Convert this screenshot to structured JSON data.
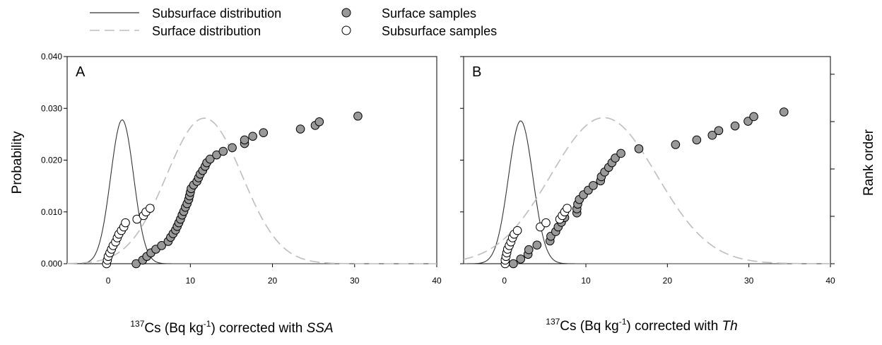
{
  "legend": {
    "subsurface_distribution": "Subsurface distribution",
    "surface_distribution": "Surface distribution",
    "surface_samples": "Surface samples",
    "subsurface_samples": "Subsurface samples"
  },
  "left_axis_title": "Probability",
  "right_axis_title": "Rank order",
  "colors": {
    "subsurface_line": "#333333",
    "surface_line": "#bdbdbd",
    "surface_marker_fill": "#999999",
    "subsurface_marker_fill": "#ffffff",
    "marker_edge": "#000000"
  },
  "chart_data": [
    {
      "type": "scatter",
      "panel_letter": "A",
      "xlabel": {
        "iso": "137",
        "a": "Cs (Bq kg",
        "exp": "-1",
        "b": ")  corrected with ",
        "method": "SSA"
      },
      "xlim": [
        -5,
        40
      ],
      "ylim": [
        0,
        0.04
      ],
      "x_ticks": [
        0,
        10,
        20,
        30,
        40
      ],
      "x_tick_labels": [
        "0",
        "10",
        "20",
        "30",
        "40"
      ],
      "y_ticks": [
        0,
        0.01,
        0.02,
        0.03,
        0.04
      ],
      "y_tick_labels": [
        "0.000",
        "0.010",
        "0.020",
        "0.030",
        "0.040"
      ],
      "series": [
        {
          "name": "Subsurface distribution",
          "kind": "normal_curve",
          "mean": 1.7,
          "sd": 1.4,
          "peak": 0.0278
        },
        {
          "name": "Surface distribution",
          "kind": "normal_curve",
          "mean": 11.7,
          "sd": 4.6,
          "peak": 0.0281
        },
        {
          "name": "Surface samples",
          "kind": "points",
          "x": [
            3.4,
            4.2,
            4.7,
            5.2,
            5.8,
            6.5,
            7.3,
            7.6,
            7.9,
            8.2,
            8.4,
            8.6,
            8.8,
            9.0,
            9.2,
            9.4,
            9.6,
            9.8,
            9.9,
            10.0,
            10.1,
            10.4,
            10.8,
            11.0,
            11.2,
            11.5,
            11.8,
            12.0,
            12.4,
            13.2,
            14.0,
            15.1,
            16.6,
            16.6,
            17.6,
            18.9,
            23.4,
            25.2,
            25.7,
            30.4
          ],
          "y": [
            0.0,
            0.0007,
            0.0014,
            0.0021,
            0.0028,
            0.0035,
            0.0043,
            0.0051,
            0.0058,
            0.0065,
            0.0072,
            0.0079,
            0.0086,
            0.0094,
            0.0101,
            0.0109,
            0.0116,
            0.0124,
            0.0131,
            0.0138,
            0.0145,
            0.0152,
            0.0159,
            0.0166,
            0.0173,
            0.018,
            0.0188,
            0.0195,
            0.0202,
            0.021,
            0.0217,
            0.0224,
            0.0232,
            0.0239,
            0.0246,
            0.0253,
            0.026,
            0.0267,
            0.0274,
            0.0285
          ]
        },
        {
          "name": "Subsurface samples",
          "kind": "points",
          "x": [
            -0.2,
            -0.1,
            0.0,
            0.2,
            0.4,
            0.6,
            0.9,
            1.1,
            1.3,
            1.6,
            1.9,
            2.1,
            3.5,
            4.3,
            4.6,
            5.1
          ],
          "y": [
            0.0,
            0.0007,
            0.0014,
            0.0021,
            0.0028,
            0.0035,
            0.0042,
            0.005,
            0.0057,
            0.0064,
            0.0071,
            0.0079,
            0.0086,
            0.0093,
            0.01,
            0.0107
          ]
        }
      ]
    },
    {
      "type": "scatter",
      "panel_letter": "B",
      "xlabel": {
        "iso": "137",
        "a": "Cs  (Bq kg",
        "exp": "-1",
        "b": ") corrected with ",
        "method": "Th"
      },
      "xlim": [
        -5,
        40
      ],
      "ylim": [
        0,
        0.04
      ],
      "x_ticks": [
        0,
        10,
        20,
        30,
        40
      ],
      "x_tick_labels": [
        "0",
        "10",
        "20",
        "30",
        "40"
      ],
      "y_ticks": [
        0,
        0.01,
        0.02,
        0.03,
        0.04
      ],
      "y_tick_labels": [],
      "series": [
        {
          "name": "Subsurface distribution",
          "kind": "normal_curve",
          "mean": 2.0,
          "sd": 1.5,
          "peak": 0.0276
        },
        {
          "name": "Surface distribution",
          "kind": "normal_curve",
          "mean": 12.2,
          "sd": 6.5,
          "peak": 0.0282
        },
        {
          "name": "Surface samples",
          "kind": "points",
          "x": [
            1.1,
            2.0,
            2.9,
            3.0,
            4.0,
            5.6,
            5.7,
            6.3,
            6.6,
            7.0,
            7.4,
            8.9,
            8.9,
            9.0,
            9.2,
            9.7,
            10.3,
            10.9,
            11.8,
            11.9,
            12.3,
            12.8,
            13.2,
            13.6,
            14.3,
            16.5,
            21.0,
            23.6,
            25.5,
            26.3,
            28.3,
            29.9,
            30.6,
            34.3
          ],
          "y": [
            0.0,
            0.0009,
            0.0018,
            0.0027,
            0.0036,
            0.0044,
            0.0053,
            0.0062,
            0.0071,
            0.008,
            0.0089,
            0.0098,
            0.0106,
            0.0115,
            0.0124,
            0.0133,
            0.0142,
            0.0151,
            0.016,
            0.0168,
            0.0177,
            0.0186,
            0.0195,
            0.0204,
            0.0213,
            0.0222,
            0.023,
            0.0239,
            0.0248,
            0.0257,
            0.0266,
            0.0275,
            0.0284,
            0.0293
          ]
        },
        {
          "name": "Subsurface samples",
          "kind": "points",
          "x": [
            0.1,
            0.1,
            0.2,
            0.3,
            0.4,
            0.6,
            0.8,
            1.0,
            1.2,
            1.6,
            4.4,
            5.1,
            6.8,
            7.1,
            7.4,
            7.7
          ],
          "y": [
            0.0,
            0.0007,
            0.0014,
            0.0021,
            0.0028,
            0.0035,
            0.0042,
            0.005,
            0.0057,
            0.0064,
            0.0071,
            0.0079,
            0.0086,
            0.0093,
            0.01,
            0.0107
          ]
        }
      ]
    }
  ]
}
